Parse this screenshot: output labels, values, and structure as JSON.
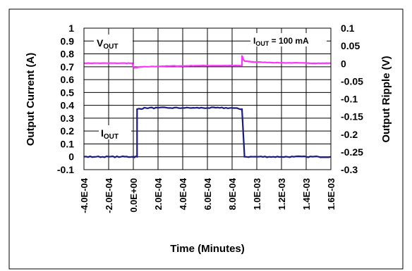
{
  "chart_data": {
    "type": "line",
    "xlabel": "Time (Minutes)",
    "ylabel_left": "Output Current (A)",
    "ylabel_right": "Output Ripple (V)",
    "x_tick_labels": [
      "-4.0E-04",
      "-2.0E-04",
      "0.0E+00",
      "2.0E-04",
      "4.0E-04",
      "6.0E-04",
      "8.0E-04",
      "1.0E-03",
      "1.2E-03",
      "1.4E-03",
      "1.6E-03"
    ],
    "x_ticks": [
      -0.0004,
      -0.0002,
      0,
      0.0002,
      0.0004,
      0.0006,
      0.0008,
      0.001,
      0.0012,
      0.0014,
      0.0016
    ],
    "xlim": [
      -0.0004,
      0.0016
    ],
    "y_left_ticks": [
      -0.1,
      0,
      0.1,
      0.2,
      0.3,
      0.4,
      0.5,
      0.6,
      0.7,
      0.8,
      0.9,
      1
    ],
    "y_left_tick_labels": [
      "-0.1",
      "0",
      "0.1",
      "0.2",
      "0.3",
      "0.4",
      "0.5",
      "0.6",
      "0.7",
      "0.8",
      "0.9",
      "1"
    ],
    "ylim_left": [
      -0.1,
      1
    ],
    "y_right_ticks": [
      -0.3,
      -0.25,
      -0.2,
      -0.15,
      -0.1,
      -0.05,
      0,
      0.05,
      0.1
    ],
    "y_right_tick_labels": [
      "-0.3",
      "-0.25",
      "-0.2",
      "-0.15",
      "-0.1",
      "-0.05",
      "0",
      "0.05",
      "0.1"
    ],
    "ylim_right": [
      -0.3,
      0.1
    ],
    "grid": true,
    "series": [
      {
        "name": "VOUT",
        "axis": "right",
        "color": "#ff33ff",
        "x": [
          -0.0004,
          -0.0003,
          -0.0002,
          -0.0001,
          -1e-05,
          0,
          1e-05,
          5e-05,
          0.0001,
          0.0002,
          0.0003,
          0.0004,
          0.0005,
          0.0006,
          0.0007,
          0.0008,
          0.00088,
          0.00088,
          0.00089,
          0.0009,
          0.00095,
          0.001,
          0.0011,
          0.0012,
          0.0013,
          0.0014,
          0.0015,
          0.0016
        ],
        "values": [
          0.001,
          0.001,
          0.001,
          0.001,
          0.001,
          -0.008,
          -0.012,
          -0.01,
          -0.009,
          -0.008,
          -0.007,
          -0.007,
          -0.006,
          -0.006,
          -0.006,
          -0.006,
          -0.006,
          0.023,
          0.012,
          0.007,
          0.005,
          0.004,
          0.003,
          0.002,
          0.002,
          0.001,
          0.001,
          0.001
        ]
      },
      {
        "name": "IOUT",
        "axis": "left",
        "color": "#1a1a80",
        "x": [
          -0.0004,
          -0.0003,
          -0.0002,
          -0.0001,
          -1e-05,
          3e-05,
          3e-05,
          0.0001,
          0.0002,
          0.0003,
          0.0004,
          0.0005,
          0.0006,
          0.0007,
          0.0008,
          0.00088,
          0.0009,
          0.0009,
          0.001,
          0.0011,
          0.0012,
          0.0013,
          0.0014,
          0.0015,
          0.0016
        ],
        "values": [
          0,
          0,
          0,
          0,
          0,
          0,
          0.37,
          0.38,
          0.38,
          0.38,
          0.38,
          0.38,
          0.38,
          0.38,
          0.38,
          0.37,
          0.01,
          0,
          0,
          0,
          0,
          0,
          0,
          0,
          0
        ]
      }
    ],
    "annotations": [
      {
        "main": "V",
        "sub": "OUT",
        "suffix": ""
      },
      {
        "main": "I",
        "sub": "OUT",
        "suffix": ""
      },
      {
        "main": "I",
        "sub": "OUT",
        "suffix": " = 100 mA"
      }
    ]
  }
}
